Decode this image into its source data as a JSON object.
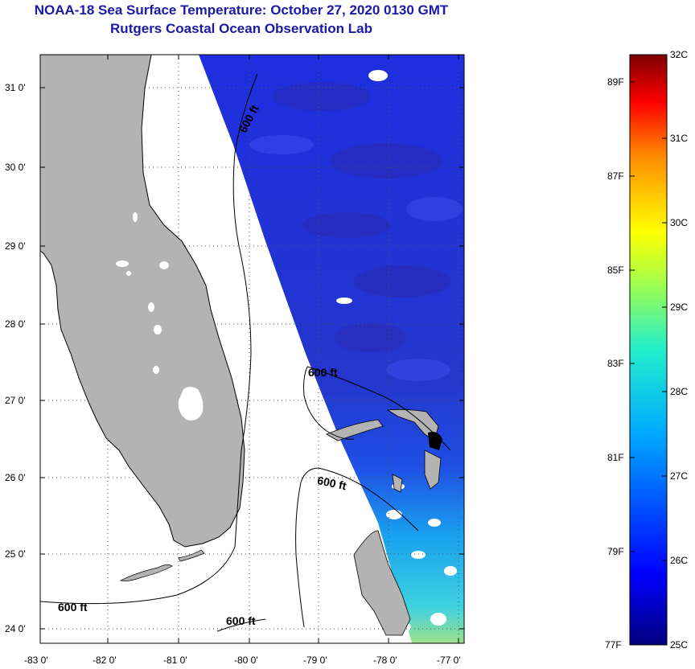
{
  "header": {
    "title_line1": "NOAA-18 Sea Surface Temperature:  October 27, 2020 0130 GMT",
    "title_line2": "Rutgers Coastal Ocean Observation Lab"
  },
  "map": {
    "lat_ticks": [
      "31 0'",
      "30 0'",
      "29 0'",
      "28 0'",
      "27 0'",
      "26 0'",
      "25 0'",
      "24 0'"
    ],
    "lon_ticks": [
      "-83 0'",
      "-82 0'",
      "-81 0'",
      "-80 0'",
      "-79 0'",
      "-78 0'",
      "-77 0'"
    ],
    "contour_labels": [
      "600 ft",
      "600 ft",
      "600 ft",
      "600 ft",
      "600 ft"
    ],
    "land_color": "#b3b3b3"
  },
  "colorbar": {
    "celsius": [
      "32C",
      "31C",
      "30C",
      "29C",
      "28C",
      "27C",
      "26C",
      "25C"
    ],
    "fahrenheit": [
      "89F",
      "87F",
      "85F",
      "83F",
      "81F",
      "79F",
      "77F"
    ],
    "range_c": [
      25,
      32
    ]
  }
}
